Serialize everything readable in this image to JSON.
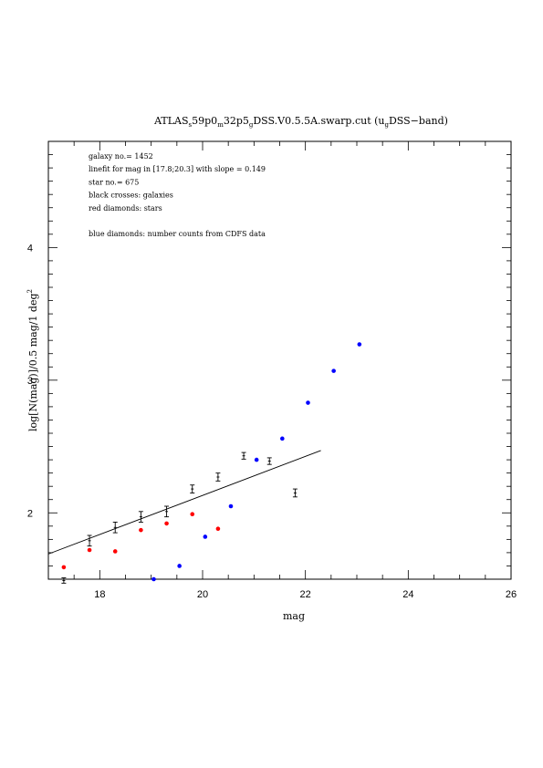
{
  "chart_data": {
    "type": "scatter",
    "title": {
      "prefix": "ATLAS",
      "sub1": "s",
      "part2": "59p0",
      "sub2": "m",
      "part3": "32p5",
      "sub3": "g",
      "part4": "DSS.V0.5.5A.swarp.cut (u",
      "sub4": "g",
      "part5": "DSS−band)"
    },
    "xlabel": "mag",
    "ylabel_main": "log[N(mag)]/0.5 mag/1 deg",
    "ylabel_sup": "2",
    "xlim": [
      17,
      26
    ],
    "ylim": [
      1.5,
      4.8
    ],
    "x_ticks": [
      18,
      20,
      22,
      24,
      26
    ],
    "x_tick_labels": [
      "18",
      "20",
      "22",
      "24",
      "26"
    ],
    "y_ticks": [
      2,
      3,
      4
    ],
    "y_tick_labels": [
      "2",
      "3",
      "4"
    ],
    "annotations": [
      "galaxy no.= 1452",
      "linefit for mag in [17.8;20.3] with slope = 0.149",
      "star no.= 675",
      "black crosses: galaxies",
      "red diamonds: stars",
      "",
      "blue diamonds: number counts from CDFS data"
    ],
    "series": [
      {
        "marker": "errorbar",
        "color": "#000000",
        "points": [
          {
            "x": 17.3,
            "y": 1.49,
            "err": 0.02
          },
          {
            "x": 17.8,
            "y": 1.79,
            "err": 0.04
          },
          {
            "x": 18.3,
            "y": 1.89,
            "err": 0.04
          },
          {
            "x": 18.8,
            "y": 1.97,
            "err": 0.04
          },
          {
            "x": 19.3,
            "y": 2.01,
            "err": 0.04
          },
          {
            "x": 19.8,
            "y": 2.18,
            "err": 0.03
          },
          {
            "x": 20.3,
            "y": 2.27,
            "err": 0.03
          },
          {
            "x": 20.8,
            "y": 2.43,
            "err": 0.025
          },
          {
            "x": 21.3,
            "y": 2.39,
            "err": 0.025
          },
          {
            "x": 21.8,
            "y": 2.15,
            "err": 0.03
          }
        ]
      },
      {
        "marker": "dot",
        "color": "#ff0000",
        "points": [
          {
            "x": 17.3,
            "y": 1.59
          },
          {
            "x": 17.8,
            "y": 1.72
          },
          {
            "x": 18.3,
            "y": 1.71
          },
          {
            "x": 18.8,
            "y": 1.87
          },
          {
            "x": 19.3,
            "y": 1.92
          },
          {
            "x": 19.8,
            "y": 1.99
          },
          {
            "x": 20.3,
            "y": 1.88
          }
        ]
      },
      {
        "marker": "dot",
        "color": "#0000ff",
        "points": [
          {
            "x": 19.05,
            "y": 1.5
          },
          {
            "x": 19.55,
            "y": 1.6
          },
          {
            "x": 20.05,
            "y": 1.82
          },
          {
            "x": 20.55,
            "y": 2.05
          },
          {
            "x": 21.05,
            "y": 2.4
          },
          {
            "x": 21.55,
            "y": 2.56
          },
          {
            "x": 22.05,
            "y": 2.83
          },
          {
            "x": 22.55,
            "y": 3.07
          },
          {
            "x": 23.05,
            "y": 3.27
          }
        ]
      }
    ],
    "fit_line": {
      "x1": 17.0,
      "y1": 1.69,
      "x2": 22.3,
      "y2": 2.47,
      "color": "#000000"
    }
  }
}
